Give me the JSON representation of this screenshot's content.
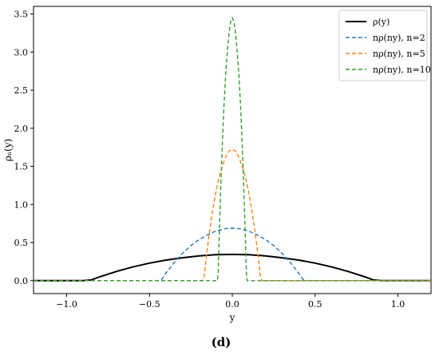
{
  "panel_label": "(d)",
  "chart_data": {
    "type": "line",
    "xlabel": "y",
    "ylabel": "ρₙ(y)",
    "xlim": [
      -1.2,
      1.2
    ],
    "ylim": [
      -0.17,
      3.6
    ],
    "xticks": [
      -1.0,
      -0.5,
      0.0,
      0.5,
      1.0
    ],
    "xtick_labels": [
      "−1.0",
      "−0.5",
      "0.0",
      "0.5",
      "1.0"
    ],
    "yticks": [
      0.0,
      0.5,
      1.0,
      1.5,
      2.0,
      2.5,
      3.0,
      3.5
    ],
    "ytick_labels": [
      "0.0",
      "0.5",
      "1.0",
      "1.5",
      "2.0",
      "2.5",
      "3.0",
      "3.5"
    ],
    "legend_position": "top-right",
    "series": [
      {
        "name": "ρ(y)",
        "color": "#000000",
        "style": "solid",
        "x": [
          -1.2,
          -0.9,
          -0.85,
          -0.8,
          -0.7,
          -0.6,
          -0.5,
          -0.4,
          -0.3,
          -0.2,
          -0.1,
          0.0,
          0.1,
          0.2,
          0.3,
          0.4,
          0.5,
          0.6,
          0.7,
          0.8,
          0.85,
          0.9,
          1.2
        ],
        "y": [
          0.0,
          0.0,
          0.01,
          0.05,
          0.12,
          0.18,
          0.23,
          0.27,
          0.3,
          0.325,
          0.34,
          0.345,
          0.34,
          0.325,
          0.3,
          0.27,
          0.23,
          0.18,
          0.12,
          0.05,
          0.01,
          0.0,
          0.0
        ]
      },
      {
        "name": "nρ(ny), n=2",
        "color": "#1f77b4",
        "style": "dashed",
        "x": [
          -1.2,
          -0.45,
          -0.425,
          -0.4,
          -0.35,
          -0.3,
          -0.25,
          -0.2,
          -0.15,
          -0.1,
          -0.05,
          0.0,
          0.05,
          0.1,
          0.15,
          0.2,
          0.25,
          0.3,
          0.35,
          0.4,
          0.425,
          0.45,
          1.2
        ],
        "y": [
          0.0,
          0.0,
          0.02,
          0.1,
          0.24,
          0.36,
          0.46,
          0.54,
          0.6,
          0.65,
          0.68,
          0.69,
          0.68,
          0.65,
          0.6,
          0.54,
          0.46,
          0.36,
          0.24,
          0.1,
          0.02,
          0.0,
          0.0
        ]
      },
      {
        "name": "nρ(ny), n=5",
        "color": "#ff7f0e",
        "style": "dashed",
        "x": [
          -1.2,
          -0.18,
          -0.17,
          -0.16,
          -0.14,
          -0.12,
          -0.1,
          -0.08,
          -0.06,
          -0.04,
          -0.02,
          0.0,
          0.02,
          0.04,
          0.06,
          0.08,
          0.1,
          0.12,
          0.14,
          0.16,
          0.17,
          0.18,
          1.2
        ],
        "y": [
          0.0,
          0.0,
          0.05,
          0.25,
          0.6,
          0.9,
          1.15,
          1.35,
          1.5,
          1.62,
          1.7,
          1.725,
          1.7,
          1.62,
          1.5,
          1.35,
          1.15,
          0.9,
          0.6,
          0.25,
          0.05,
          0.0,
          0.0
        ]
      },
      {
        "name": "nρ(ny), n=10",
        "color": "#2ca02c",
        "style": "dashed",
        "x": [
          -1.2,
          -0.09,
          -0.085,
          -0.08,
          -0.07,
          -0.06,
          -0.05,
          -0.04,
          -0.03,
          -0.02,
          -0.01,
          0.0,
          0.01,
          0.02,
          0.03,
          0.04,
          0.05,
          0.06,
          0.07,
          0.08,
          0.085,
          0.09,
          1.2
        ],
        "y": [
          0.0,
          0.0,
          0.1,
          0.5,
          1.2,
          1.8,
          2.3,
          2.7,
          3.0,
          3.24,
          3.4,
          3.45,
          3.4,
          3.24,
          3.0,
          2.7,
          2.3,
          1.8,
          1.2,
          0.5,
          0.1,
          0.0,
          0.0
        ]
      }
    ]
  }
}
